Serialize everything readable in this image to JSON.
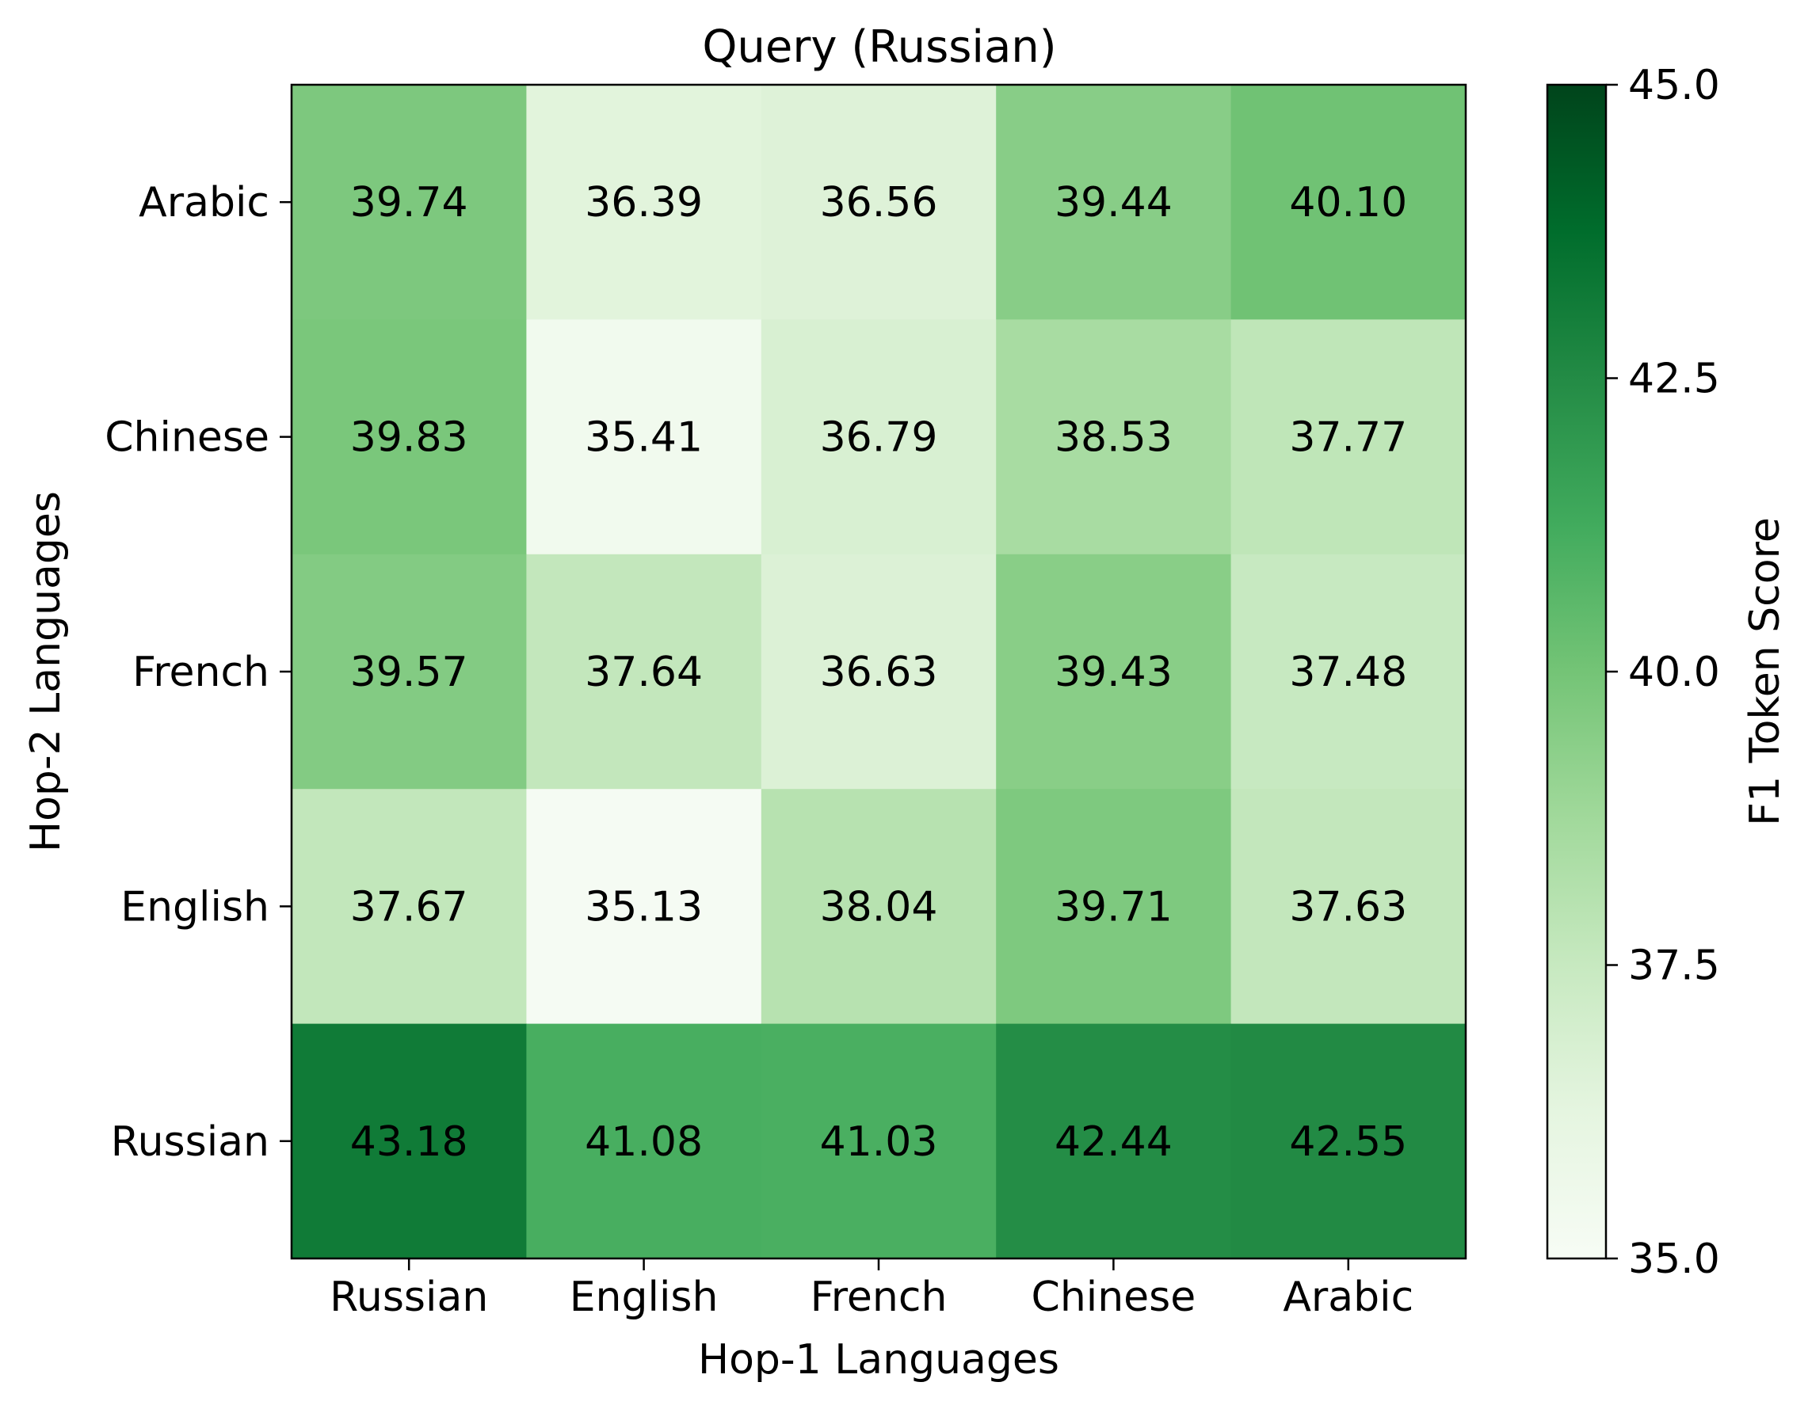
{
  "chart_data": {
    "type": "heatmap",
    "title": "Query (Russian)",
    "xlabel": "Hop-1 Languages",
    "ylabel": "Hop-2 Languages",
    "x_categories": [
      "Russian",
      "English",
      "French",
      "Chinese",
      "Arabic"
    ],
    "y_categories": [
      "Arabic",
      "Chinese",
      "French",
      "English",
      "Russian"
    ],
    "values": [
      [
        39.74,
        36.39,
        36.56,
        39.44,
        40.1
      ],
      [
        39.83,
        35.41,
        36.79,
        38.53,
        37.77
      ],
      [
        39.57,
        37.64,
        36.63,
        39.43,
        37.48
      ],
      [
        37.67,
        35.13,
        38.04,
        39.71,
        37.63
      ],
      [
        43.18,
        41.08,
        41.03,
        42.44,
        42.55
      ]
    ],
    "value_labels": [
      [
        "39.74",
        "36.39",
        "36.56",
        "39.44",
        "40.10"
      ],
      [
        "39.83",
        "35.41",
        "36.79",
        "38.53",
        "37.77"
      ],
      [
        "39.57",
        "37.64",
        "36.63",
        "39.43",
        "37.48"
      ],
      [
        "37.67",
        "35.13",
        "38.04",
        "39.71",
        "37.63"
      ],
      [
        "43.18",
        "41.08",
        "41.03",
        "42.44",
        "42.55"
      ]
    ],
    "colorbar": {
      "label": "F1 Token Score",
      "range": [
        35.0,
        45.0
      ],
      "ticks": [
        35.0,
        37.5,
        40.0,
        42.5,
        45.0
      ],
      "tick_labels": [
        "35.0",
        "37.5",
        "40.0",
        "42.5",
        "45.0"
      ],
      "colormap": "Greens",
      "colormap_stops": [
        "#f7fcf5",
        "#e5f5e0",
        "#c7e9c0",
        "#a1d99b",
        "#74c476",
        "#41ab5d",
        "#238b45",
        "#006d2c",
        "#00441b"
      ]
    }
  }
}
